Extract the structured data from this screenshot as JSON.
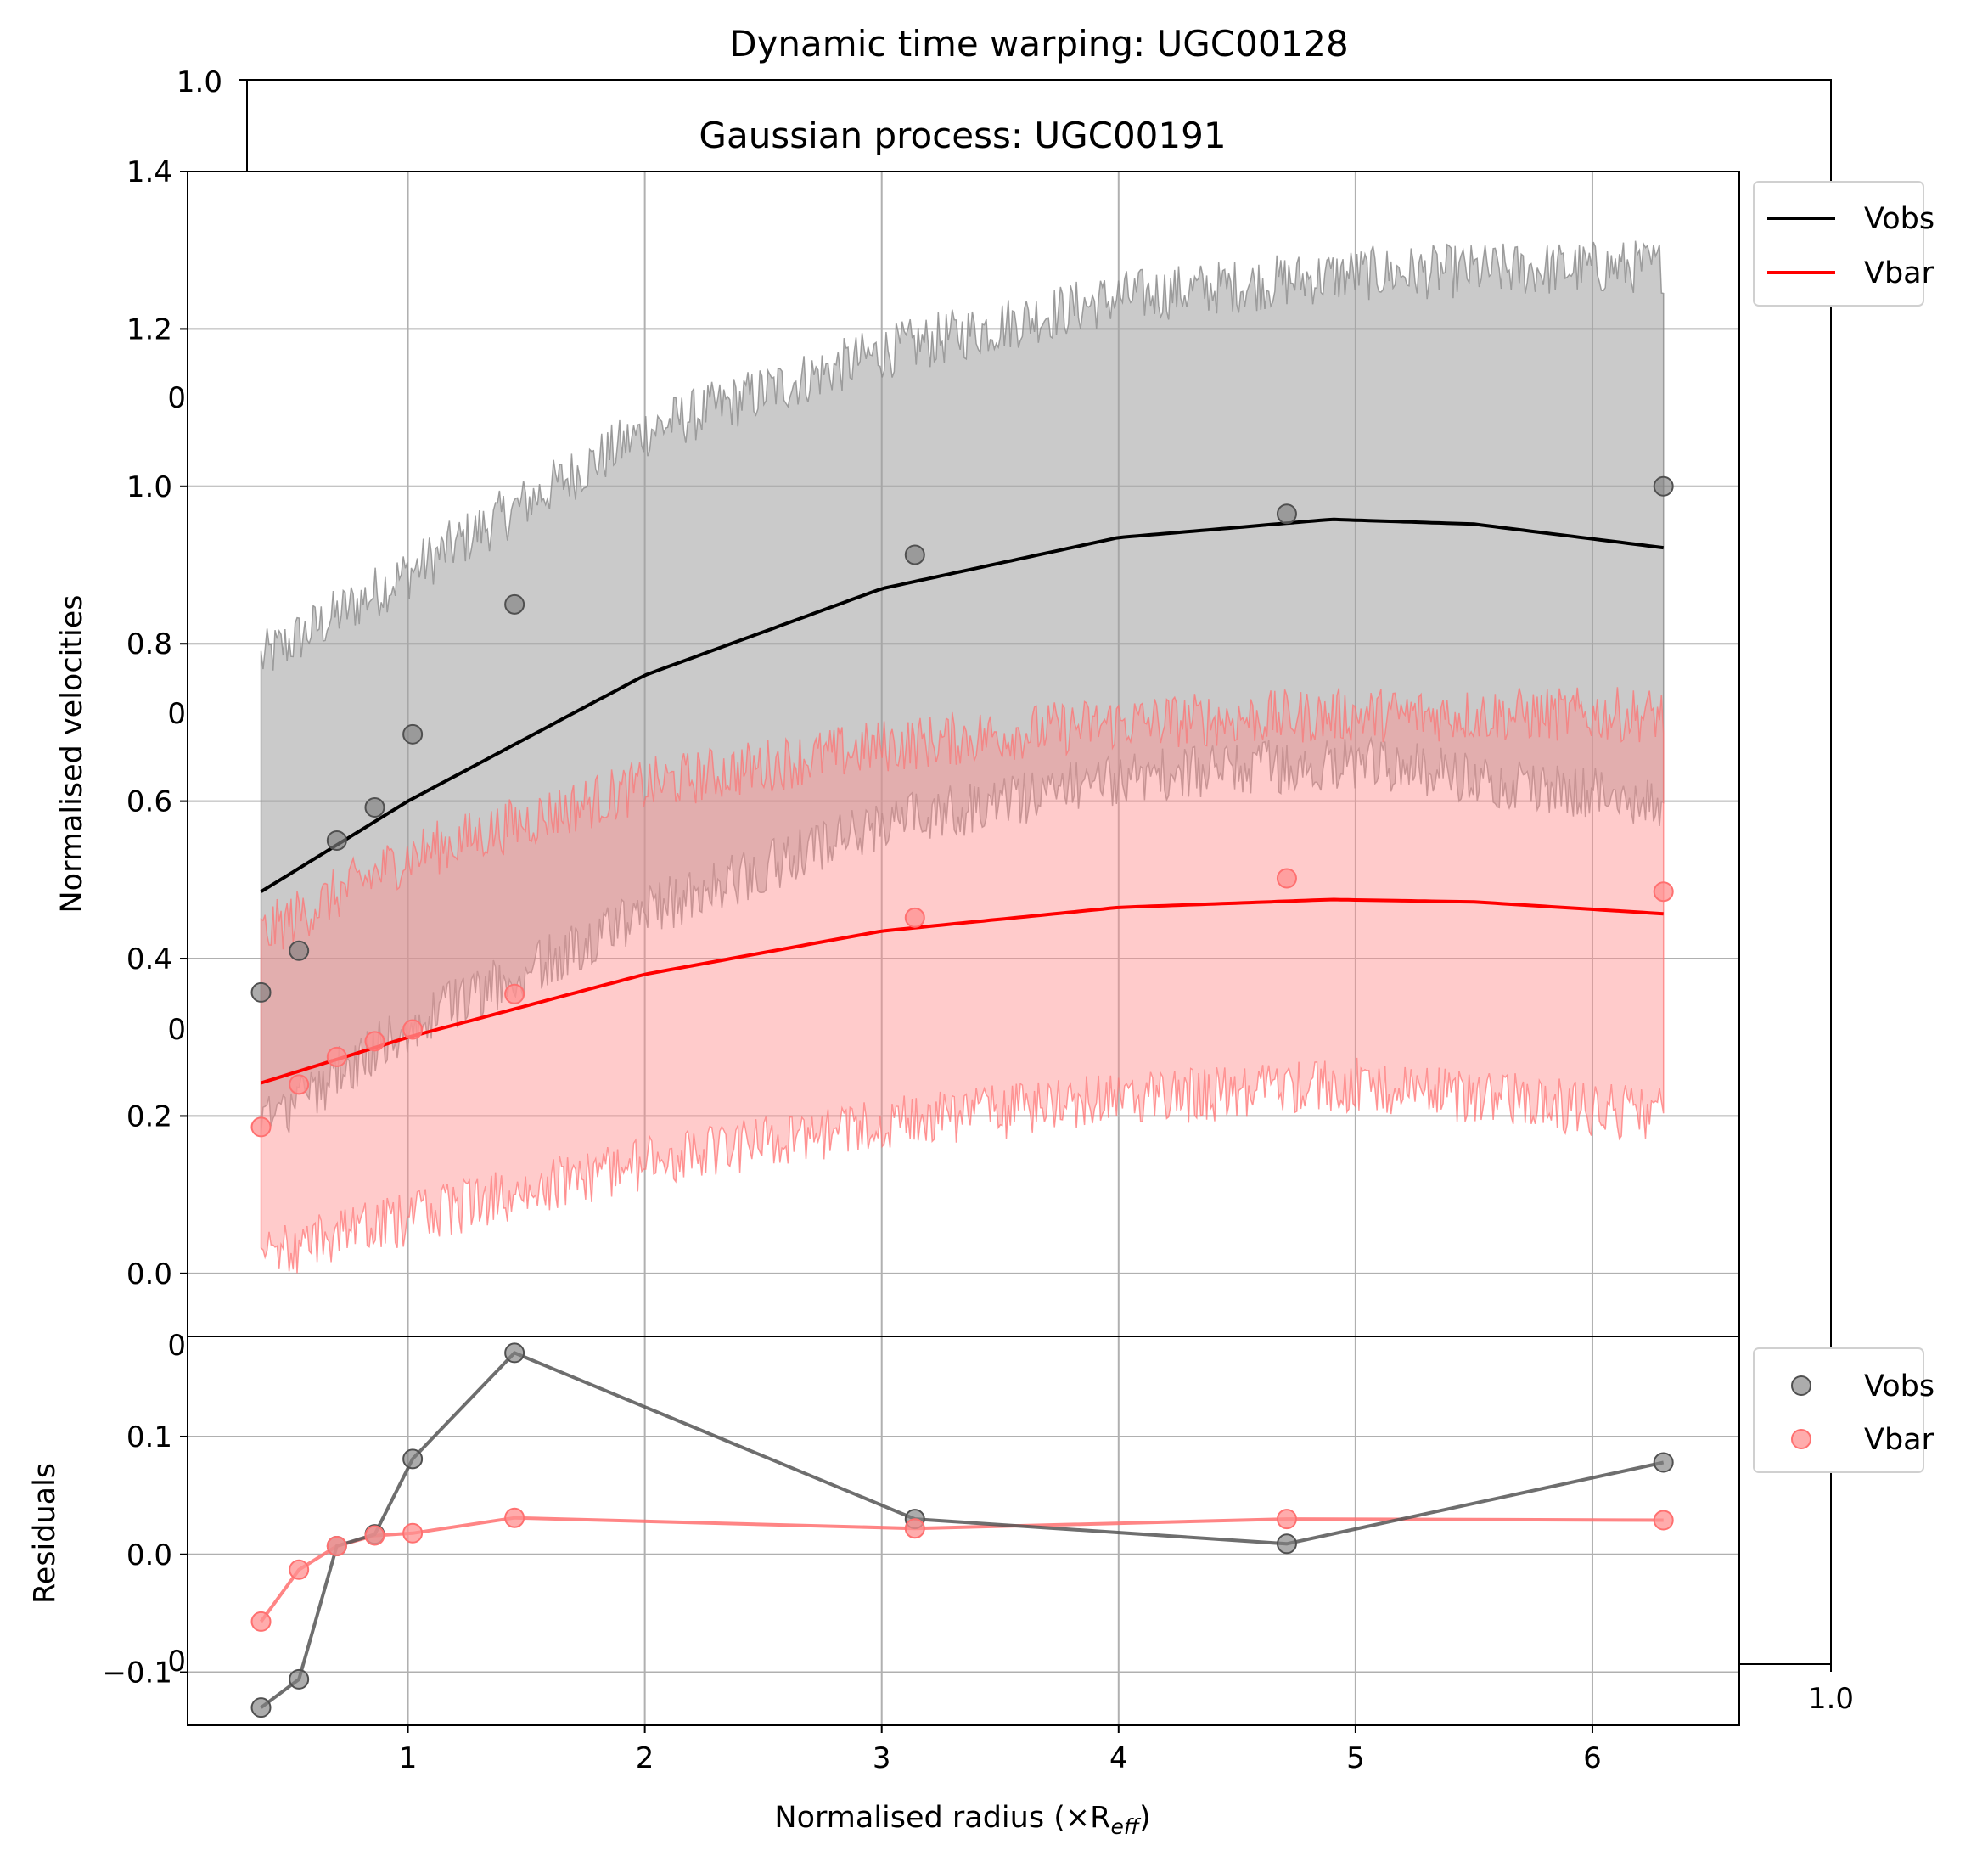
{
  "chart_data": [
    {
      "type": "line",
      "role": "background-axes",
      "title": "Dynamic time warping: UGC00128",
      "xlim": [
        0,
        1
      ],
      "ylim": [
        0,
        1
      ],
      "x_ticks": [
        "1.0"
      ],
      "y_ticks": [
        "1.0"
      ],
      "y_ticks_partially_hidden": [
        "0",
        "0",
        "0",
        "0",
        "0"
      ]
    },
    {
      "type": "line",
      "role": "main",
      "title": "Gaussian process: UGC00191",
      "ylabel": "Normalised velocities",
      "xlim": [
        0.07,
        6.62
      ],
      "ylim": [
        -0.08,
        1.4
      ],
      "y_ticks": [
        0.0,
        0.2,
        0.4,
        0.6,
        0.8,
        1.0,
        1.2,
        1.4
      ],
      "y_tick_labels": [
        "0.0",
        "0.2",
        "0.4",
        "0.6",
        "0.8",
        "1.0",
        "1.2",
        "1.4"
      ],
      "x_ticks": [
        1,
        2,
        3,
        4,
        5,
        6
      ],
      "grid": true,
      "legend": {
        "position": "outside-top-right",
        "entries": [
          "Vobs",
          "Vbar"
        ]
      },
      "colors": {
        "Vobs": "#000000",
        "Vbar": "#ff0000",
        "Vobs_band": "#9e9e9e",
        "Vbar_band": "#ff8c8c"
      },
      "points": {
        "x": [
          0.38,
          0.54,
          0.7,
          0.86,
          1.02,
          1.45,
          3.14,
          4.71,
          6.3
        ],
        "Vobs": [
          0.357,
          0.41,
          0.55,
          0.592,
          0.685,
          0.85,
          0.913,
          0.965,
          1.0
        ],
        "Vbar": [
          0.186,
          0.24,
          0.275,
          0.295,
          0.31,
          0.355,
          0.452,
          0.502,
          0.485
        ]
      },
      "gp_mean": {
        "x": [
          0.38,
          1.0,
          2.0,
          3.0,
          4.0,
          4.9,
          5.5,
          6.3
        ],
        "Vobs": [
          0.485,
          0.6,
          0.76,
          0.87,
          0.935,
          0.958,
          0.952,
          0.922
        ],
        "Vbar": [
          0.242,
          0.3,
          0.38,
          0.435,
          0.465,
          0.475,
          0.472,
          0.457
        ]
      },
      "gp_band": {
        "x": [
          0.38,
          1.0,
          2.0,
          3.0,
          4.0,
          5.0,
          6.3
        ],
        "Vobs_upper": [
          0.78,
          0.89,
          1.07,
          1.17,
          1.24,
          1.27,
          1.28
        ],
        "Vobs_lower": [
          0.19,
          0.31,
          0.46,
          0.57,
          0.63,
          0.65,
          0.6
        ],
        "Vbar_upper": [
          0.43,
          0.53,
          0.62,
          0.67,
          0.7,
          0.71,
          0.71
        ],
        "Vbar_lower": [
          0.02,
          0.07,
          0.14,
          0.19,
          0.22,
          0.24,
          0.2
        ]
      }
    },
    {
      "type": "line",
      "role": "residuals",
      "xlabel": "Normalised radius (×R",
      "xlabel_sub": "eff",
      "xlabel_end": ")",
      "ylabel": "Residuals",
      "xlim": [
        0.07,
        6.62
      ],
      "ylim": [
        -0.145,
        0.185
      ],
      "y_ticks": [
        -0.1,
        0.0,
        0.1
      ],
      "y_tick_labels": [
        "−0.1",
        "0.0",
        "0.1"
      ],
      "x_ticks": [
        1,
        2,
        3,
        4,
        5,
        6
      ],
      "x_tick_labels": [
        "1",
        "2",
        "3",
        "4",
        "5",
        "6"
      ],
      "grid": true,
      "legend": {
        "position": "outside-top-right",
        "entries": [
          "Vobs",
          "Vbar"
        ]
      },
      "series": [
        {
          "name": "Vobs",
          "color": "#555555",
          "x": [
            0.38,
            0.54,
            0.7,
            0.86,
            1.02,
            1.45,
            3.14,
            4.71,
            6.3
          ],
          "values": [
            -0.13,
            -0.106,
            0.007,
            0.017,
            0.081,
            0.171,
            0.03,
            0.009,
            0.078
          ]
        },
        {
          "name": "Vbar",
          "color": "#ff7070",
          "x": [
            0.38,
            0.54,
            0.7,
            0.86,
            1.02,
            1.45,
            3.14,
            4.71,
            6.3
          ],
          "values": [
            -0.057,
            -0.013,
            0.007,
            0.016,
            0.018,
            0.031,
            0.022,
            0.03,
            0.029
          ]
        }
      ]
    }
  ]
}
